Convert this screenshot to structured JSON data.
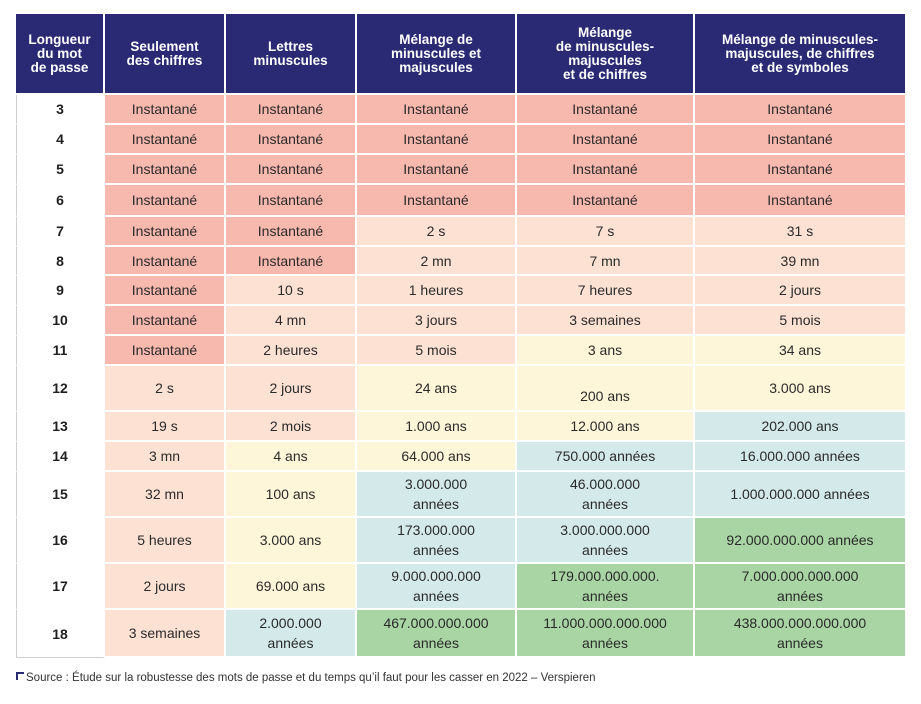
{
  "headers": [
    "Longueur\ndu mot\nde passe",
    "Seulement\ndes chiffres",
    "Lettres\nminuscules",
    "Mélange de\nminuscules et\nmajuscules",
    "Mélange\nde minuscules-\nmajuscules\net de chiffres",
    "Mélange de minuscules-\nmajuscules, de chiffres\net de symboles"
  ],
  "rows": [
    {
      "length": "3",
      "cells": [
        "Instantané",
        "Instantané",
        "Instantané",
        "Instantané",
        "Instantané"
      ]
    },
    {
      "length": "4",
      "cells": [
        "Instantané",
        "Instantané",
        "Instantané",
        "Instantané",
        "Instantané"
      ]
    },
    {
      "length": "5",
      "cells": [
        "Instantané",
        "Instantané",
        "Instantané",
        "Instantané",
        "Instantané"
      ]
    },
    {
      "length": "6",
      "cells": [
        "Instantané",
        "Instantané",
        "Instantané",
        "Instantané",
        "Instantané"
      ]
    },
    {
      "length": "7",
      "cells": [
        "Instantané",
        "Instantané",
        "2 s",
        "7 s",
        "31 s"
      ]
    },
    {
      "length": "8",
      "cells": [
        "Instantané",
        "Instantané",
        "2 mn",
        "7 mn",
        "39 mn"
      ]
    },
    {
      "length": "9",
      "cells": [
        "Instantané",
        "10 s",
        "1 heures",
        "7 heures",
        "2 jours"
      ]
    },
    {
      "length": "10",
      "cells": [
        "Instantané",
        "4 mn",
        "3 jours",
        "3 semaines",
        "5 mois"
      ]
    },
    {
      "length": "11",
      "cells": [
        "Instantané",
        "2 heures",
        "5 mois",
        "3 ans",
        "34 ans"
      ]
    },
    {
      "length": "12",
      "cells": [
        "2 s",
        "2 jours",
        "24 ans",
        "200 ans",
        "3.000 ans"
      ]
    },
    {
      "length": "13",
      "cells": [
        "19 s",
        "2 mois",
        "1.000 ans",
        "12.000 ans",
        "202.000 ans"
      ]
    },
    {
      "length": "14",
      "cells": [
        "3 mn",
        "4 ans",
        "64.000 ans",
        "750.000 années",
        "16.000.000 années"
      ]
    },
    {
      "length": "15",
      "cells": [
        "32 mn",
        "100 ans",
        "3.000.000\nannées",
        "46.000.000\nannées",
        "1.000.000.000 années"
      ]
    },
    {
      "length": "16",
      "cells": [
        "5 heures",
        "3.000 ans",
        "173.000.000\nannées",
        "3.000.000.000\nannées",
        "92.000.000.000 années"
      ]
    },
    {
      "length": "17",
      "cells": [
        "2 jours",
        "69.000 ans",
        "9.000.000.000\nannées",
        "179.000.000.000.\nannées",
        "7.000.000.000.000\nannées"
      ]
    },
    {
      "length": "18",
      "cells": [
        "3 semaines",
        "2.000.000\nannées",
        "467.000.000.000\nannées",
        "11.000.000.000.000\nannées",
        "438.000.000.000.000\nannées"
      ]
    }
  ],
  "cell_colors": {
    "instant": "#f7b8ad",
    "short": "#fde2d4",
    "years": "#fef6d8",
    "long": "#d4e9ea",
    "very_long": "#a8d5a3",
    "header": "#2a2a74"
  },
  "source": "Source : Étude sur la robustesse des mots de passe et du temps qu’il faut pour les casser en 2022 – Verspieren"
}
